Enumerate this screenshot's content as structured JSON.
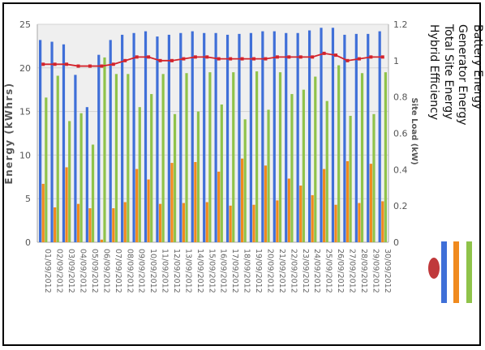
{
  "chart_data": {
    "type": "bar",
    "categories": [
      "01/09/2012",
      "02/09/2012",
      "03/09/2012",
      "04/09/2012",
      "05/09/2012",
      "06/09/2012",
      "07/09/2012",
      "08/09/2012",
      "09/09/2012",
      "10/09/2012",
      "11/09/2012",
      "12/09/2012",
      "13/09/2012",
      "14/09/2012",
      "15/09/2012",
      "16/09/2012",
      "17/09/2012",
      "18/09/2012",
      "19/09/2012",
      "20/09/2012",
      "21/09/2012",
      "22/09/2012",
      "23/09/2012",
      "24/09/2012",
      "25/09/2012",
      "26/09/2012",
      "27/09/2012",
      "28/09/2012",
      "29/09/2012",
      "30/09/2012"
    ],
    "ylabel": "Energy (kWhrs)",
    "y2label": "Site Load (kW)",
    "ylim": [
      0,
      25
    ],
    "y2lim": [
      0,
      1.2
    ],
    "yticks": [
      0,
      5,
      10,
      15,
      20,
      25
    ],
    "y2ticks": [
      "0",
      "0.2",
      "0.4",
      "0.6",
      "0.8",
      "1",
      "1.2"
    ],
    "grid": true,
    "legend_position": "right",
    "series": [
      {
        "name": "Battery Energy",
        "kind": "bar",
        "axis": "left",
        "color": "#3f6fd8",
        "values": [
          23.2,
          23.0,
          22.7,
          19.2,
          15.5,
          21.5,
          23.2,
          23.8,
          24.0,
          24.2,
          23.6,
          23.8,
          24.0,
          24.2,
          24.0,
          24.0,
          23.8,
          23.9,
          24.0,
          24.2,
          24.2,
          24.0,
          24.0,
          24.3,
          24.6,
          24.6,
          23.8,
          23.9,
          23.9,
          24.2
        ]
      },
      {
        "name": "Generator Energy",
        "kind": "bar",
        "axis": "left",
        "color": "#f08a1e",
        "values": [
          6.7,
          4.0,
          8.6,
          4.4,
          3.9,
          0.3,
          3.9,
          4.6,
          8.4,
          7.2,
          4.4,
          9.1,
          4.5,
          9.2,
          4.6,
          8.1,
          4.2,
          9.6,
          4.3,
          8.8,
          4.8,
          7.3,
          6.5,
          5.4,
          8.4,
          4.3,
          9.3,
          4.5,
          9.0,
          4.7
        ]
      },
      {
        "name": "Total Site Energy",
        "kind": "bar",
        "axis": "left",
        "color": "#8fc34a",
        "values": [
          16.6,
          19.1,
          13.9,
          14.8,
          11.2,
          21.2,
          19.3,
          19.3,
          15.5,
          17.0,
          19.3,
          14.7,
          19.4,
          15.0,
          19.5,
          15.8,
          19.5,
          14.1,
          19.6,
          15.2,
          19.5,
          17.0,
          17.5,
          19.0,
          16.2,
          20.3,
          14.5,
          19.4,
          14.7,
          19.5
        ]
      },
      {
        "name": "Hybrid Efficiency",
        "kind": "line",
        "axis": "right",
        "color": "#d4232b",
        "values": [
          0.98,
          0.98,
          0.98,
          0.97,
          0.97,
          0.97,
          0.98,
          1.0,
          1.02,
          1.02,
          1.0,
          1.0,
          1.01,
          1.02,
          1.02,
          1.01,
          1.01,
          1.01,
          1.01,
          1.01,
          1.02,
          1.02,
          1.02,
          1.02,
          1.04,
          1.03,
          1.0,
          1.01,
          1.02,
          1.02
        ]
      }
    ]
  }
}
